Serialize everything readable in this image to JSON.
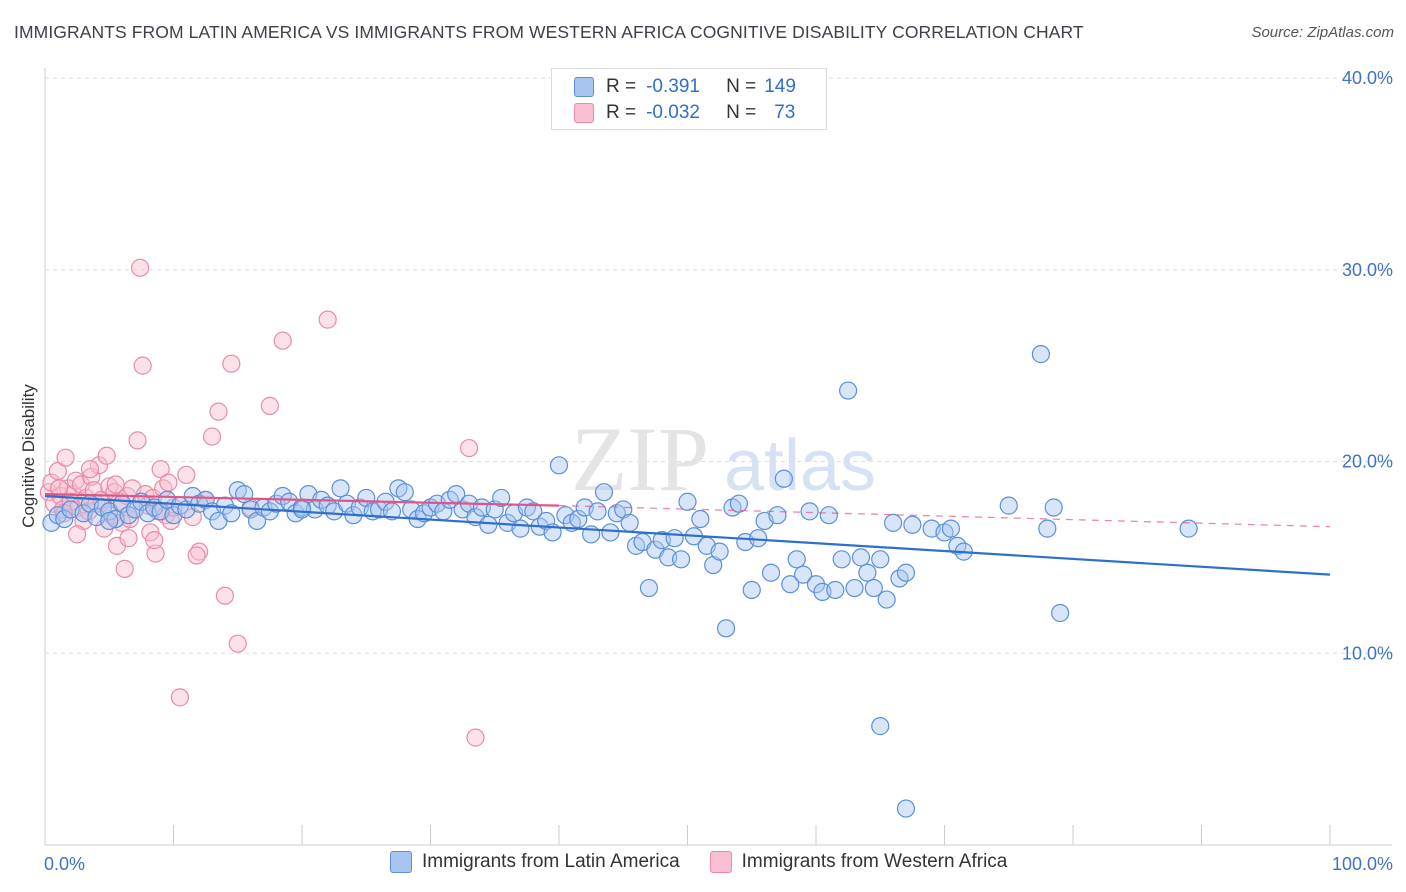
{
  "header": {
    "title": "IMMIGRANTS FROM LATIN AMERICA VS IMMIGRANTS FROM WESTERN AFRICA COGNITIVE DISABILITY CORRELATION CHART",
    "source": "Source: ZipAtlas.com"
  },
  "watermark": {
    "zip": "ZIP",
    "atlas": "atlas"
  },
  "legend": {
    "r_label": "R =",
    "n_label": "N =",
    "items": [
      {
        "r": "-0.391",
        "n": "149"
      },
      {
        "r": "-0.032",
        "n": "73"
      }
    ]
  },
  "colors": {
    "blue_fill": "#a9c5ef",
    "blue_stroke": "#5b8fd9",
    "blue_line": "#2f6fcc",
    "pink_fill": "#f7bfcf",
    "pink_stroke": "#e98aa6",
    "pink_line": "#e05585",
    "axis_text": "#3f72c6",
    "grid": "#dddddd"
  },
  "chart_data": {
    "type": "scatter",
    "title": "IMMIGRANTS FROM LATIN AMERICA VS IMMIGRANTS FROM WESTERN AFRICA COGNITIVE DISABILITY CORRELATION CHART",
    "xlabel": "",
    "ylabel": "Cognitive Disability",
    "xlim": [
      0,
      100
    ],
    "ylim": [
      0,
      40
    ],
    "x_tick_labels": [
      "0.0%",
      "100.0%"
    ],
    "y_ticks": [
      10,
      20,
      30,
      40
    ],
    "y_tick_labels": [
      "10.0%",
      "20.0%",
      "30.0%",
      "40.0%"
    ],
    "grid": true,
    "legend_position": "top-center",
    "series": [
      {
        "name": "Immigrants from Latin America",
        "color": "#a9c5ef",
        "r": -0.391,
        "n": 149,
        "trend": {
          "x": [
            0,
            100
          ],
          "y": [
            18.2,
            14.1
          ],
          "style": "solid"
        },
        "points": [
          [
            0.5,
            16.8
          ],
          [
            1,
            17.2
          ],
          [
            1.5,
            17.0
          ],
          [
            2,
            17.5
          ],
          [
            3,
            17.3
          ],
          [
            3.5,
            17.8
          ],
          [
            4,
            17.1
          ],
          [
            4.5,
            17.6
          ],
          [
            5,
            17.4
          ],
          [
            5.5,
            17.0
          ],
          [
            6,
            17.8
          ],
          [
            6.5,
            17.2
          ],
          [
            7,
            17.5
          ],
          [
            7.5,
            17.9
          ],
          [
            8,
            17.3
          ],
          [
            8.5,
            17.6
          ],
          [
            9,
            17.4
          ],
          [
            9.5,
            18.0
          ],
          [
            10,
            17.2
          ],
          [
            10.5,
            17.7
          ],
          [
            11,
            17.5
          ],
          [
            11.5,
            18.2
          ],
          [
            12,
            17.8
          ],
          [
            12.5,
            18.0
          ],
          [
            13,
            17.4
          ],
          [
            13.5,
            16.9
          ],
          [
            14,
            17.7
          ],
          [
            14.5,
            17.3
          ],
          [
            15,
            18.5
          ],
          [
            15.5,
            18.3
          ],
          [
            16,
            17.5
          ],
          [
            16.5,
            16.9
          ],
          [
            17,
            17.6
          ],
          [
            17.5,
            17.4
          ],
          [
            18,
            17.8
          ],
          [
            18.5,
            18.2
          ],
          [
            19,
            17.9
          ],
          [
            19.5,
            17.3
          ],
          [
            20,
            17.6
          ],
          [
            20.5,
            18.3
          ],
          [
            21,
            17.5
          ],
          [
            21.5,
            18.0
          ],
          [
            22,
            17.7
          ],
          [
            22.5,
            17.4
          ],
          [
            23,
            18.6
          ],
          [
            23.5,
            17.8
          ],
          [
            24,
            17.2
          ],
          [
            24.5,
            17.6
          ],
          [
            25,
            18.1
          ],
          [
            25.5,
            17.4
          ],
          [
            26,
            17.5
          ],
          [
            26.5,
            17.9
          ],
          [
            27,
            17.4
          ],
          [
            27.5,
            18.6
          ],
          [
            28,
            18.4
          ],
          [
            28.5,
            17.5
          ],
          [
            29,
            17.0
          ],
          [
            29.5,
            17.3
          ],
          [
            30,
            17.6
          ],
          [
            30.5,
            17.8
          ],
          [
            31,
            17.4
          ],
          [
            31.5,
            18.0
          ],
          [
            32,
            18.3
          ],
          [
            32.5,
            17.5
          ],
          [
            33,
            17.8
          ],
          [
            33.5,
            17.1
          ],
          [
            34,
            17.6
          ],
          [
            34.5,
            16.7
          ],
          [
            35,
            17.5
          ],
          [
            35.5,
            18.1
          ],
          [
            36,
            16.8
          ],
          [
            36.5,
            17.3
          ],
          [
            37,
            16.5
          ],
          [
            37.5,
            17.6
          ],
          [
            38,
            17.4
          ],
          [
            38.5,
            16.6
          ],
          [
            39,
            16.9
          ],
          [
            39.5,
            16.3
          ],
          [
            40,
            19.8
          ],
          [
            40.5,
            17.2
          ],
          [
            41,
            16.8
          ],
          [
            41.5,
            17.0
          ],
          [
            42,
            17.6
          ],
          [
            42.5,
            16.2
          ],
          [
            43,
            17.4
          ],
          [
            43.5,
            18.4
          ],
          [
            44,
            16.3
          ],
          [
            44.5,
            17.3
          ],
          [
            45,
            17.5
          ],
          [
            45.5,
            16.8
          ],
          [
            46,
            15.6
          ],
          [
            46.5,
            15.8
          ],
          [
            47,
            13.4
          ],
          [
            47.5,
            15.4
          ],
          [
            48,
            15.9
          ],
          [
            48.5,
            15.0
          ],
          [
            49,
            16.0
          ],
          [
            49.5,
            14.9
          ],
          [
            50,
            17.9
          ],
          [
            50.5,
            16.1
          ],
          [
            51,
            17.0
          ],
          [
            51.5,
            15.6
          ],
          [
            52,
            14.6
          ],
          [
            52.5,
            15.3
          ],
          [
            53,
            11.3
          ],
          [
            53.5,
            17.6
          ],
          [
            54,
            17.8
          ],
          [
            54.5,
            15.8
          ],
          [
            55,
            13.3
          ],
          [
            55.5,
            16.0
          ],
          [
            56,
            16.9
          ],
          [
            56.5,
            14.2
          ],
          [
            57,
            17.2
          ],
          [
            57.5,
            19.1
          ],
          [
            58,
            13.6
          ],
          [
            58.5,
            14.9
          ],
          [
            59,
            14.1
          ],
          [
            59.5,
            17.4
          ],
          [
            60,
            13.6
          ],
          [
            60.5,
            13.2
          ],
          [
            61,
            17.2
          ],
          [
            61.5,
            13.3
          ],
          [
            62,
            14.9
          ],
          [
            62.5,
            23.7
          ],
          [
            63,
            13.4
          ],
          [
            63.5,
            15.0
          ],
          [
            64,
            14.2
          ],
          [
            64.5,
            13.4
          ],
          [
            65,
            14.9
          ],
          [
            65.5,
            12.8
          ],
          [
            66,
            16.8
          ],
          [
            66.5,
            13.9
          ],
          [
            67,
            14.2
          ],
          [
            67.5,
            16.7
          ],
          [
            69,
            16.5
          ],
          [
            70,
            16.3
          ],
          [
            70.5,
            16.5
          ],
          [
            71,
            15.6
          ],
          [
            71.5,
            15.3
          ],
          [
            75,
            17.7
          ],
          [
            77.5,
            25.6
          ],
          [
            78,
            16.5
          ],
          [
            78.5,
            17.6
          ],
          [
            79,
            12.1
          ],
          [
            89,
            16.5
          ],
          [
            65,
            6.2
          ],
          [
            67,
            1.9
          ],
          [
            5,
            16.9
          ],
          [
            20,
            17.5
          ]
        ]
      },
      {
        "name": "Immigrants from Western Africa",
        "color": "#f7bfcf",
        "r": -0.032,
        "n": 73,
        "trend_solid": {
          "x": [
            0,
            40
          ],
          "y": [
            18.3,
            17.7
          ],
          "style": "solid"
        },
        "trend_dashed": {
          "x": [
            40,
            100
          ],
          "y": [
            17.7,
            16.6
          ],
          "style": "dashed"
        },
        "points": [
          [
            0.3,
            18.4
          ],
          [
            0.5,
            18.9
          ],
          [
            0.7,
            17.8
          ],
          [
            1,
            19.5
          ],
          [
            1.2,
            18.2
          ],
          [
            1.4,
            17.5
          ],
          [
            1.6,
            20.2
          ],
          [
            1.8,
            18.6
          ],
          [
            2,
            17.9
          ],
          [
            2.2,
            18.3
          ],
          [
            2.4,
            19.0
          ],
          [
            2.6,
            17.6
          ],
          [
            2.8,
            18.8
          ],
          [
            3,
            16.9
          ],
          [
            3.2,
            18.1
          ],
          [
            3.4,
            17.4
          ],
          [
            3.6,
            19.2
          ],
          [
            3.8,
            18.5
          ],
          [
            4,
            17.8
          ],
          [
            4.2,
            19.8
          ],
          [
            4.4,
            18.0
          ],
          [
            4.6,
            16.5
          ],
          [
            4.8,
            20.3
          ],
          [
            5,
            18.7
          ],
          [
            5.2,
            17.2
          ],
          [
            5.4,
            18.4
          ],
          [
            5.6,
            15.6
          ],
          [
            5.8,
            17.9
          ],
          [
            6,
            16.8
          ],
          [
            6.2,
            14.4
          ],
          [
            6.4,
            18.2
          ],
          [
            6.6,
            17.0
          ],
          [
            6.8,
            18.6
          ],
          [
            7,
            17.5
          ],
          [
            7.2,
            21.1
          ],
          [
            7.4,
            30.1
          ],
          [
            7.6,
            25.0
          ],
          [
            7.8,
            18.3
          ],
          [
            8,
            17.7
          ],
          [
            8.2,
            16.3
          ],
          [
            8.4,
            18.1
          ],
          [
            8.6,
            15.2
          ],
          [
            8.8,
            17.4
          ],
          [
            9,
            19.6
          ],
          [
            9.2,
            18.6
          ],
          [
            9.4,
            17.2
          ],
          [
            9.6,
            18.9
          ],
          [
            9.8,
            16.9
          ],
          [
            10,
            17.6
          ],
          [
            10.5,
            7.7
          ],
          [
            11,
            19.3
          ],
          [
            11.5,
            17.1
          ],
          [
            12,
            15.3
          ],
          [
            12.5,
            18.0
          ],
          [
            13,
            21.3
          ],
          [
            13.5,
            22.6
          ],
          [
            14,
            13.0
          ],
          [
            14.5,
            25.1
          ],
          [
            15,
            10.5
          ],
          [
            16,
            17.6
          ],
          [
            17.5,
            22.9
          ],
          [
            18.5,
            26.3
          ],
          [
            22,
            27.4
          ],
          [
            33,
            20.7
          ],
          [
            33.5,
            5.6
          ],
          [
            1.5,
            17.3
          ],
          [
            2.5,
            16.2
          ],
          [
            3.5,
            19.6
          ],
          [
            5.5,
            18.8
          ],
          [
            6.5,
            16.0
          ],
          [
            8.5,
            15.9
          ],
          [
            11.8,
            15.1
          ],
          [
            1.1,
            18.6
          ]
        ]
      }
    ]
  },
  "bottom_legend": {
    "items": [
      {
        "label": "Immigrants from Latin America"
      },
      {
        "label": "Immigrants from Western Africa"
      }
    ]
  }
}
